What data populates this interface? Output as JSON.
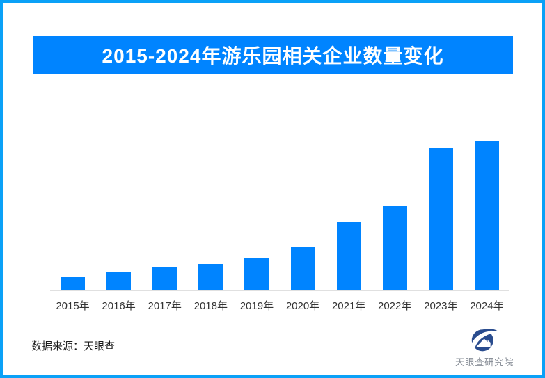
{
  "page": {
    "background_color": "#ffffff",
    "frame_border_color": "#0aa1f7"
  },
  "header": {
    "title": "2015-2024年游乐园相关企业数量变化",
    "banner_color": "#0084ff",
    "title_text_color": "#ffffff"
  },
  "chart_data": {
    "type": "bar",
    "title": "2015-2024年游乐园相关企业数量变化",
    "categories": [
      "2015年",
      "2016年",
      "2017年",
      "2018年",
      "2019年",
      "2020年",
      "2021年",
      "2022年",
      "2023年",
      "2024年"
    ],
    "values": [
      9.3,
      12.6,
      15.8,
      17.7,
      21.4,
      29.3,
      45.6,
      56.7,
      95.3,
      100
    ],
    "value_scale_note": "relative bar heights, max year 2024 = 100; chart displays no y-axis ticks and no data labels",
    "xlabel": "",
    "ylabel": "",
    "ylim": [
      0,
      100
    ],
    "grid": false,
    "legend": false,
    "bar_color": "#0084ff",
    "axis_line_color": "#e0e0e0",
    "tick_label_color": "#333333"
  },
  "footer": {
    "source_label": "数据来源：天眼查",
    "brand": {
      "logo_icon": "tianyancha-eye-logo",
      "text": "天眼查研究院",
      "icon_color": "#2a4c8e",
      "text_color": "#8a9099"
    }
  }
}
